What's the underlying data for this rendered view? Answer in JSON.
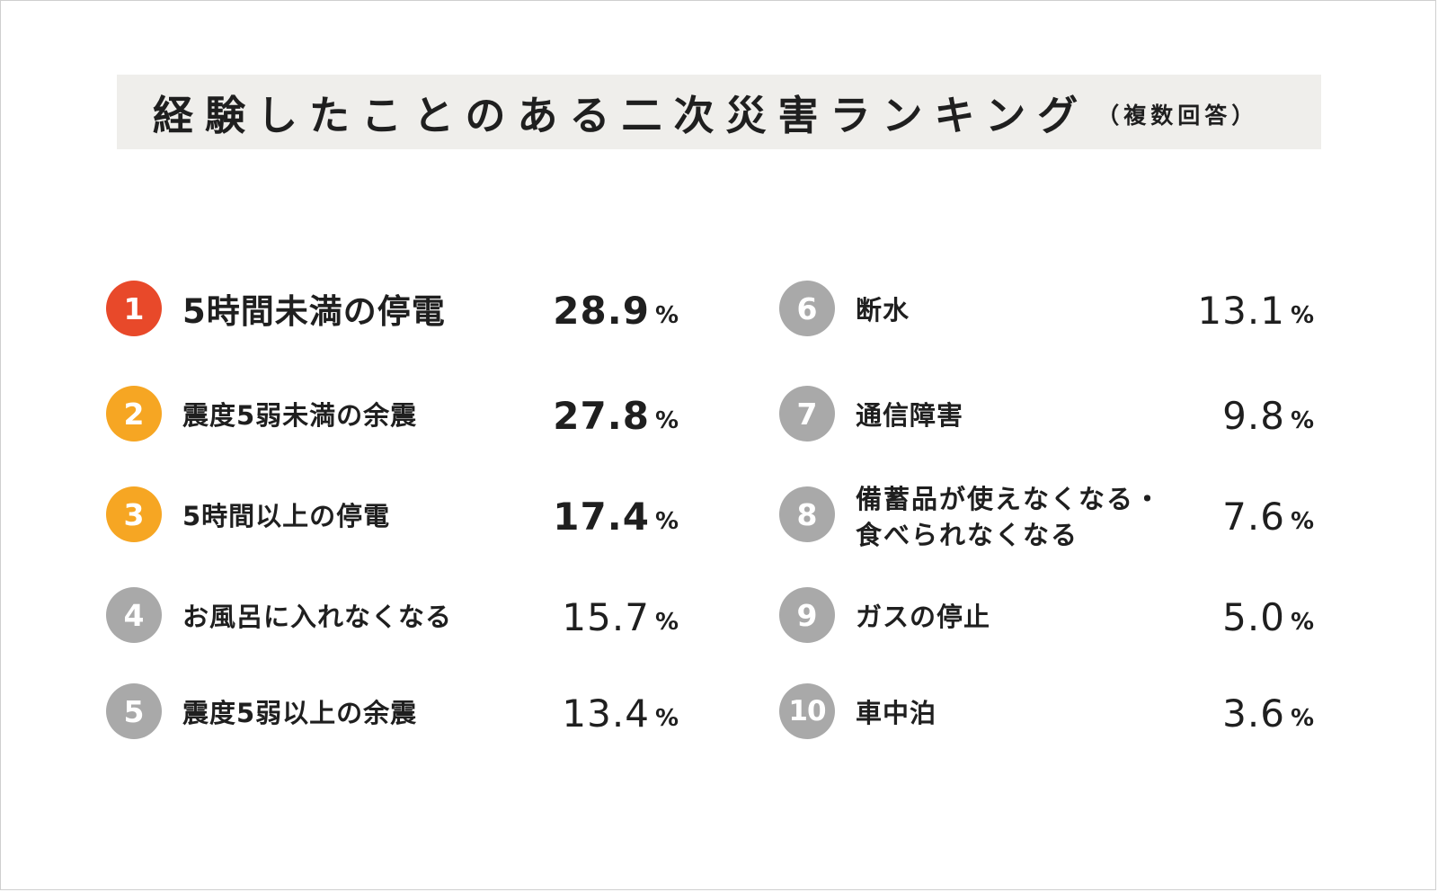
{
  "header": {
    "title": "経験したことのある二次災害ランキング",
    "subtitle": "（複数回答）"
  },
  "colors": {
    "rank1": "#e8492a",
    "rank2_3": "#f6a623",
    "rank_other": "#a9a9a9",
    "title_band": "#efeeeb"
  },
  "unit": "%",
  "chart_data": {
    "type": "table",
    "title": "経験したことのある二次災害ランキング（複数回答）",
    "columns": [
      "rank",
      "item",
      "percent"
    ],
    "rows": [
      {
        "rank": "1",
        "label": "5時間未満の停電",
        "value": "28.9",
        "value_num": 28.9
      },
      {
        "rank": "2",
        "label": "震度5弱未満の余震",
        "value": "27.8",
        "value_num": 27.8
      },
      {
        "rank": "3",
        "label": "5時間以上の停電",
        "value": "17.4",
        "value_num": 17.4
      },
      {
        "rank": "4",
        "label": "お風呂に入れなくなる",
        "value": "15.7",
        "value_num": 15.7
      },
      {
        "rank": "5",
        "label": "震度5弱以上の余震",
        "value": "13.4",
        "value_num": 13.4
      },
      {
        "rank": "6",
        "label": "断水",
        "value": "13.1",
        "value_num": 13.1
      },
      {
        "rank": "7",
        "label": "通信障害",
        "value": "9.8",
        "value_num": 9.8
      },
      {
        "rank": "8",
        "label": "備蓄品が使えなくなる・食べられなくなる",
        "label_lines": [
          "備蓄品が使えなくなる・",
          "食べられなくなる"
        ],
        "value": "7.6",
        "value_num": 7.6
      },
      {
        "rank": "9",
        "label": "ガスの停止",
        "value": "5.0",
        "value_num": 5.0
      },
      {
        "rank": "10",
        "label": "車中泊",
        "value": "3.6",
        "value_num": 3.6
      }
    ]
  }
}
